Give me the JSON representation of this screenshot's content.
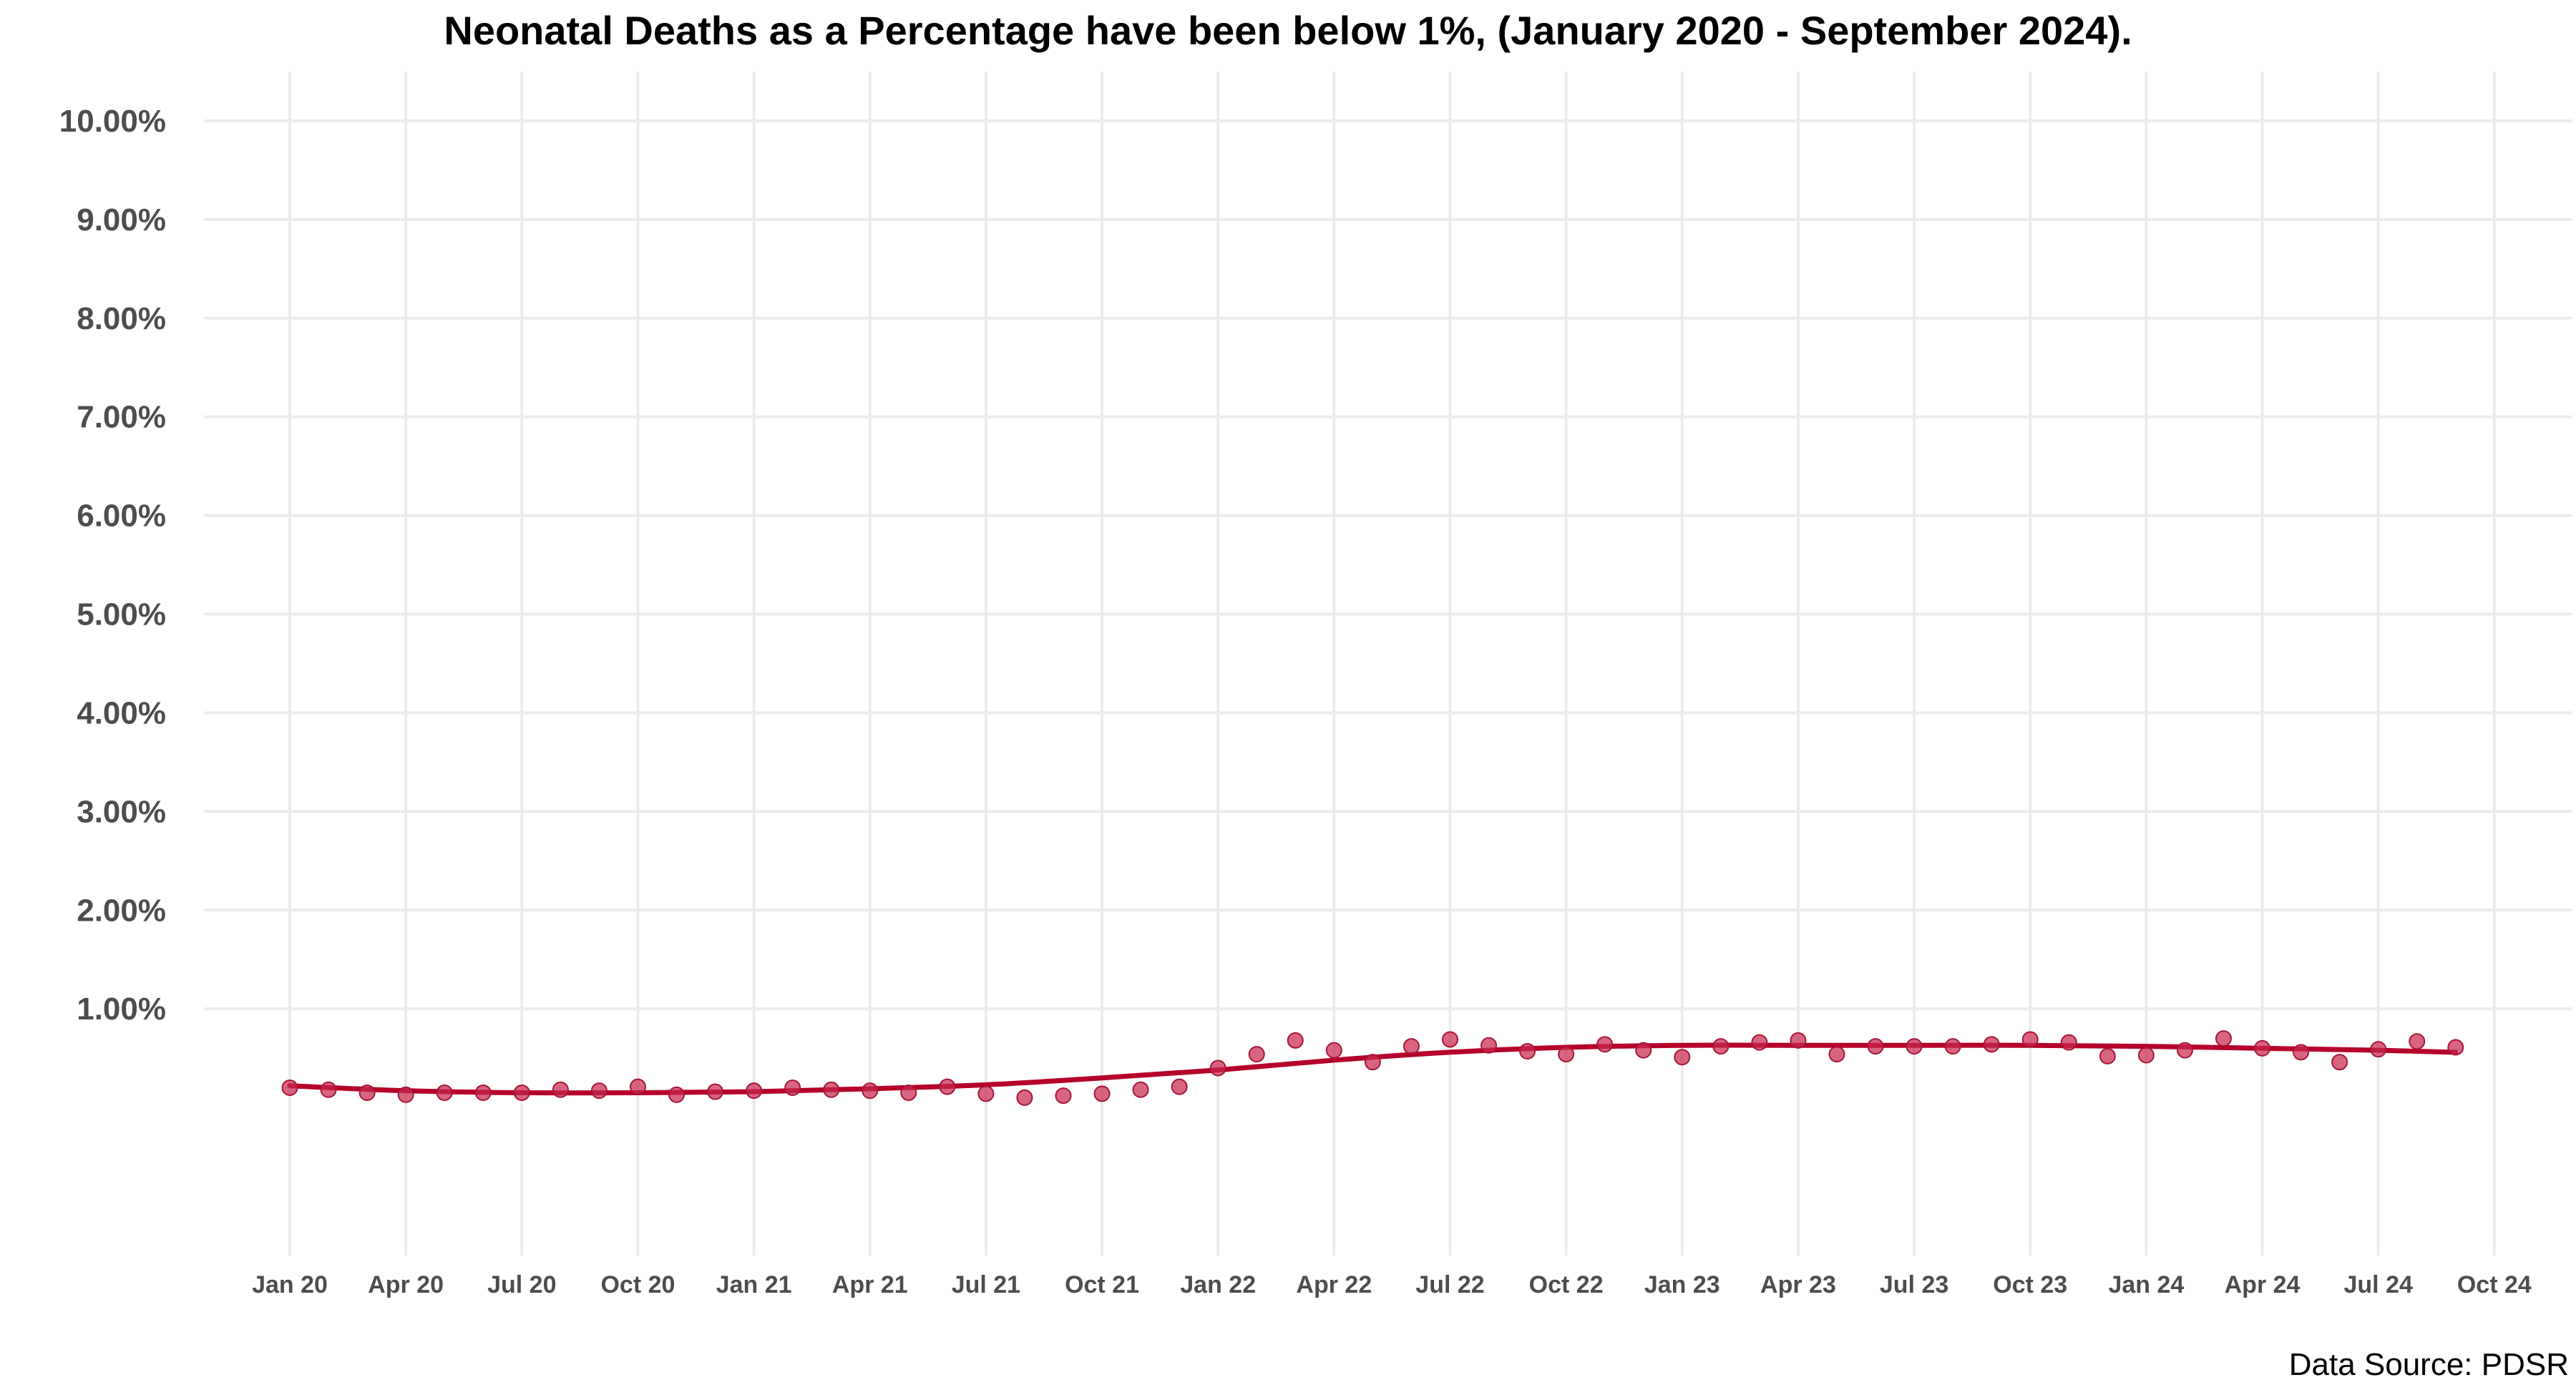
{
  "chart_data": {
    "type": "scatter",
    "title": "Neonatal Deaths as a Percentage have been below 1%, (January 2020 - September 2024).",
    "caption": "Data Source: PDSR",
    "xlabel": "",
    "ylabel": "",
    "ylim": [
      -1.5,
      10.5
    ],
    "y_ticks": [
      1,
      2,
      3,
      4,
      5,
      6,
      7,
      8,
      9,
      10
    ],
    "y_tick_labels": [
      "1.00%",
      "2.00%",
      "3.00%",
      "4.00%",
      "5.00%",
      "6.00%",
      "7.00%",
      "8.00%",
      "9.00%",
      "10.00%"
    ],
    "x_ticks": [
      "2020-01",
      "2020-04",
      "2020-07",
      "2020-10",
      "2021-01",
      "2021-04",
      "2021-07",
      "2021-10",
      "2022-01",
      "2022-04",
      "2022-07",
      "2022-10",
      "2023-01",
      "2023-04",
      "2023-07",
      "2023-10",
      "2024-01",
      "2024-04",
      "2024-07",
      "2024-10"
    ],
    "x_tick_labels": [
      "Jan 20",
      "Apr 20",
      "Jul 20",
      "Oct 20",
      "Jan 21",
      "Apr 21",
      "Jul 21",
      "Oct 21",
      "Jan 22",
      "Apr 22",
      "Jul 22",
      "Oct 22",
      "Jan 23",
      "Apr 23",
      "Jul 23",
      "Oct 23",
      "Jan 24",
      "Apr 24",
      "Jul 24",
      "Oct 24"
    ],
    "grid": true,
    "legend": "none",
    "point_color": "#c8294f",
    "line_color": "#b5002a",
    "series": [
      {
        "x": [
          "2020-01",
          "2020-02",
          "2020-03",
          "2020-04",
          "2020-05",
          "2020-06",
          "2020-07",
          "2020-08",
          "2020-09",
          "2020-10",
          "2020-11",
          "2020-12",
          "2021-01",
          "2021-02",
          "2021-03",
          "2021-04",
          "2021-05",
          "2021-06",
          "2021-07",
          "2021-08",
          "2021-09",
          "2021-10",
          "2021-11",
          "2021-12",
          "2022-01",
          "2022-02",
          "2022-03",
          "2022-04",
          "2022-05",
          "2022-06",
          "2022-07",
          "2022-08",
          "2022-09",
          "2022-10",
          "2022-11",
          "2022-12",
          "2023-01",
          "2023-02",
          "2023-03",
          "2023-04",
          "2023-05",
          "2023-06",
          "2023-07",
          "2023-08",
          "2023-09",
          "2023-10",
          "2023-11",
          "2023-12",
          "2024-01",
          "2024-02",
          "2024-03",
          "2024-04",
          "2024-05",
          "2024-06",
          "2024-07",
          "2024-08",
          "2024-09"
        ],
        "values": [
          0.2,
          0.18,
          0.15,
          0.13,
          0.15,
          0.15,
          0.15,
          0.18,
          0.17,
          0.21,
          0.13,
          0.16,
          0.17,
          0.2,
          0.18,
          0.17,
          0.15,
          0.21,
          0.14,
          0.1,
          0.12,
          0.14,
          0.18,
          0.21,
          0.4,
          0.54,
          0.68,
          0.58,
          0.46,
          0.62,
          0.69,
          0.63,
          0.57,
          0.54,
          0.64,
          0.58,
          0.51,
          0.62,
          0.66,
          0.68,
          0.54,
          0.62,
          0.62,
          0.62,
          0.64,
          0.69,
          0.66,
          0.52,
          0.53,
          0.58,
          0.7,
          0.6,
          0.56,
          0.46,
          0.59,
          0.67,
          0.61
        ]
      },
      {
        "type": "line",
        "x": [
          "2020-01",
          "2020-04",
          "2020-07",
          "2020-10",
          "2021-01",
          "2021-04",
          "2021-07",
          "2021-10",
          "2022-01",
          "2022-04",
          "2022-07",
          "2022-10",
          "2023-01",
          "2023-04",
          "2023-07",
          "2023-10",
          "2024-01",
          "2024-04",
          "2024-07",
          "2024-09"
        ],
        "values": [
          0.22,
          0.17,
          0.15,
          0.15,
          0.16,
          0.19,
          0.23,
          0.3,
          0.38,
          0.48,
          0.56,
          0.61,
          0.63,
          0.63,
          0.63,
          0.63,
          0.62,
          0.6,
          0.58,
          0.56
        ]
      }
    ]
  }
}
